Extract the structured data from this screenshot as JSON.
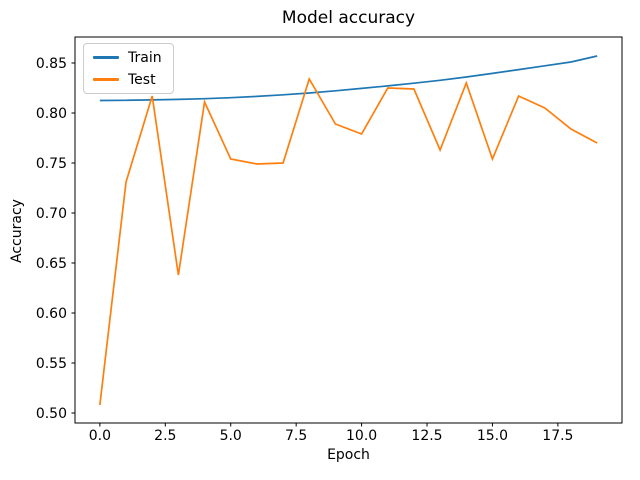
{
  "chart_data": {
    "type": "line",
    "title": "Model accuracy",
    "xlabel": "Epoch",
    "ylabel": "Accuracy",
    "x": [
      0,
      1,
      2,
      3,
      4,
      5,
      6,
      7,
      8,
      9,
      10,
      11,
      12,
      13,
      14,
      15,
      16,
      17,
      18,
      19
    ],
    "series": [
      {
        "name": "Train",
        "color": "#1f77b4",
        "values": [
          0.8125,
          0.8127,
          0.8131,
          0.8136,
          0.8143,
          0.8153,
          0.8166,
          0.8182,
          0.82,
          0.8222,
          0.8246,
          0.8271,
          0.8298,
          0.8327,
          0.836,
          0.8396,
          0.8434,
          0.8472,
          0.851,
          0.857
        ]
      },
      {
        "name": "Test",
        "color": "#ff7f0e",
        "values": [
          0.508,
          0.731,
          0.817,
          0.638,
          0.811,
          0.754,
          0.749,
          0.75,
          0.834,
          0.789,
          0.779,
          0.825,
          0.824,
          0.763,
          0.83,
          0.754,
          0.817,
          0.805,
          0.784,
          0.77
        ]
      }
    ],
    "xlim": [
      -0.95,
      19.95
    ],
    "ylim": [
      0.49,
      0.876
    ],
    "xticks": [
      0.0,
      2.5,
      5.0,
      7.5,
      10.0,
      12.5,
      15.0,
      17.5
    ],
    "xtick_labels": [
      "0.0",
      "2.5",
      "5.0",
      "7.5",
      "10.0",
      "12.5",
      "15.0",
      "17.5"
    ],
    "yticks": [
      0.5,
      0.55,
      0.6,
      0.65,
      0.7,
      0.75,
      0.8,
      0.85
    ],
    "ytick_labels": [
      "0.50",
      "0.55",
      "0.60",
      "0.65",
      "0.70",
      "0.75",
      "0.80",
      "0.85"
    ],
    "legend_position": "upper-left",
    "grid": false,
    "axis_color": "#000000",
    "background_color": "#ffffff"
  }
}
